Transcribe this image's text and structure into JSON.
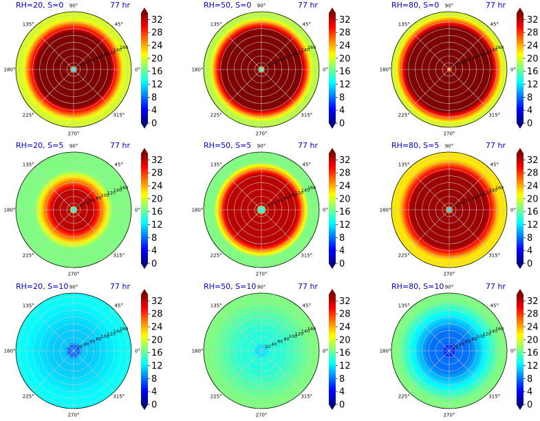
{
  "colormap": {
    "name": "jet",
    "stops": [
      "#00007f",
      "#0000ff",
      "#007fff",
      "#00ffff",
      "#7fff7f",
      "#ffff00",
      "#ff7f00",
      "#ff0000",
      "#7f0000"
    ],
    "extend_low_color": "#00007f",
    "extend_high_color": "#7f0000",
    "line_color": "#000000"
  },
  "colorbar": {
    "min": 0,
    "max": 34,
    "ticks": [
      "0",
      "4",
      "8",
      "12",
      "16",
      "20",
      "24",
      "28",
      "32"
    ],
    "tick_values": [
      0,
      4,
      8,
      12,
      16,
      20,
      24,
      28,
      32
    ],
    "extend": "both"
  },
  "polar_axes": {
    "angle_labels": [
      "0°",
      "45°",
      "90°",
      "135°",
      "180°",
      "225°",
      "270°",
      "315°"
    ],
    "angle_values": [
      0,
      45,
      90,
      135,
      180,
      225,
      270,
      315
    ],
    "radial_tick_labels": [
      "20",
      "40",
      "60",
      "80",
      "100",
      "120",
      "140",
      "160"
    ],
    "radial_values": [
      20,
      40,
      60,
      80,
      100,
      120,
      140,
      160
    ],
    "radial_label_angle": 22.5,
    "r_max": 170,
    "grid": true,
    "grid_color": "#c8c8c8",
    "outer_field_color": "#ccff33"
  },
  "chart_data": [
    {
      "type": "heatmap",
      "projection": "polar",
      "title": "RH=20, S=0",
      "time_label": "77 hr",
      "rh": 20,
      "shear": 0,
      "profile": {
        "core_radius": 6,
        "core_value": 12,
        "plateau_value": 34,
        "plateau_outer_radius": 110,
        "edge_radius": 150,
        "outer_value": 20
      }
    },
    {
      "type": "heatmap",
      "projection": "polar",
      "title": "RH=50, S=0",
      "time_label": "77 hr",
      "rh": 50,
      "shear": 0,
      "profile": {
        "core_radius": 6,
        "core_value": 14,
        "plateau_value": 34,
        "plateau_outer_radius": 118,
        "edge_radius": 152,
        "outer_value": 19
      }
    },
    {
      "type": "heatmap",
      "projection": "polar",
      "title": "RH=80, S=0",
      "time_label": "77 hr",
      "rh": 80,
      "shear": 0,
      "profile": {
        "core_radius": 3,
        "core_value": 20,
        "plateau_value": 34,
        "plateau_outer_radius": 125,
        "edge_radius": 158,
        "outer_value": 20
      }
    },
    {
      "type": "heatmap",
      "projection": "polar",
      "title": "RH=20, S=5",
      "time_label": "77 hr",
      "rh": 20,
      "shear": 5,
      "profile": {
        "core_radius": 7,
        "core_value": 12,
        "plateau_value": 32,
        "plateau_outer_radius": 60,
        "edge_radius": 115,
        "outer_value": 17
      }
    },
    {
      "type": "heatmap",
      "projection": "polar",
      "title": "RH=50, S=5",
      "time_label": "77 hr",
      "rh": 50,
      "shear": 5,
      "profile": {
        "core_radius": 9,
        "core_value": 13,
        "plateau_value": 32,
        "plateau_outer_radius": 105,
        "edge_radius": 140,
        "outer_value": 17
      }
    },
    {
      "type": "heatmap",
      "projection": "polar",
      "title": "RH=80, S=5",
      "time_label": "77 hr",
      "rh": 80,
      "shear": 5,
      "profile": {
        "core_radius": 6,
        "core_value": 11,
        "plateau_value": 33,
        "plateau_outer_radius": 112,
        "edge_radius": 148,
        "outer_value": 22
      }
    },
    {
      "type": "heatmap",
      "projection": "polar",
      "title": "RH=20, S=10",
      "time_label": "77 hr",
      "rh": 20,
      "shear": 10,
      "profile": {
        "core_radius": 20,
        "core_value": 8,
        "plateau_value": 11,
        "plateau_outer_radius": 60,
        "edge_radius": 150,
        "outer_value": 13
      }
    },
    {
      "type": "heatmap",
      "projection": "polar",
      "title": "RH=50, S=10",
      "time_label": "77 hr",
      "rh": 50,
      "shear": 10,
      "profile": {
        "core_radius": 20,
        "core_value": 12,
        "plateau_value": 14,
        "plateau_outer_radius": 60,
        "edge_radius": 150,
        "outer_value": 17
      }
    },
    {
      "type": "heatmap",
      "projection": "polar",
      "title": "RH=80, S=10",
      "time_label": "77 hr",
      "rh": 80,
      "shear": 10,
      "profile": {
        "core_radius": 20,
        "core_value": 6,
        "plateau_value": 8,
        "plateau_outer_radius": 60,
        "edge_radius": 150,
        "outer_value": 17
      }
    }
  ]
}
